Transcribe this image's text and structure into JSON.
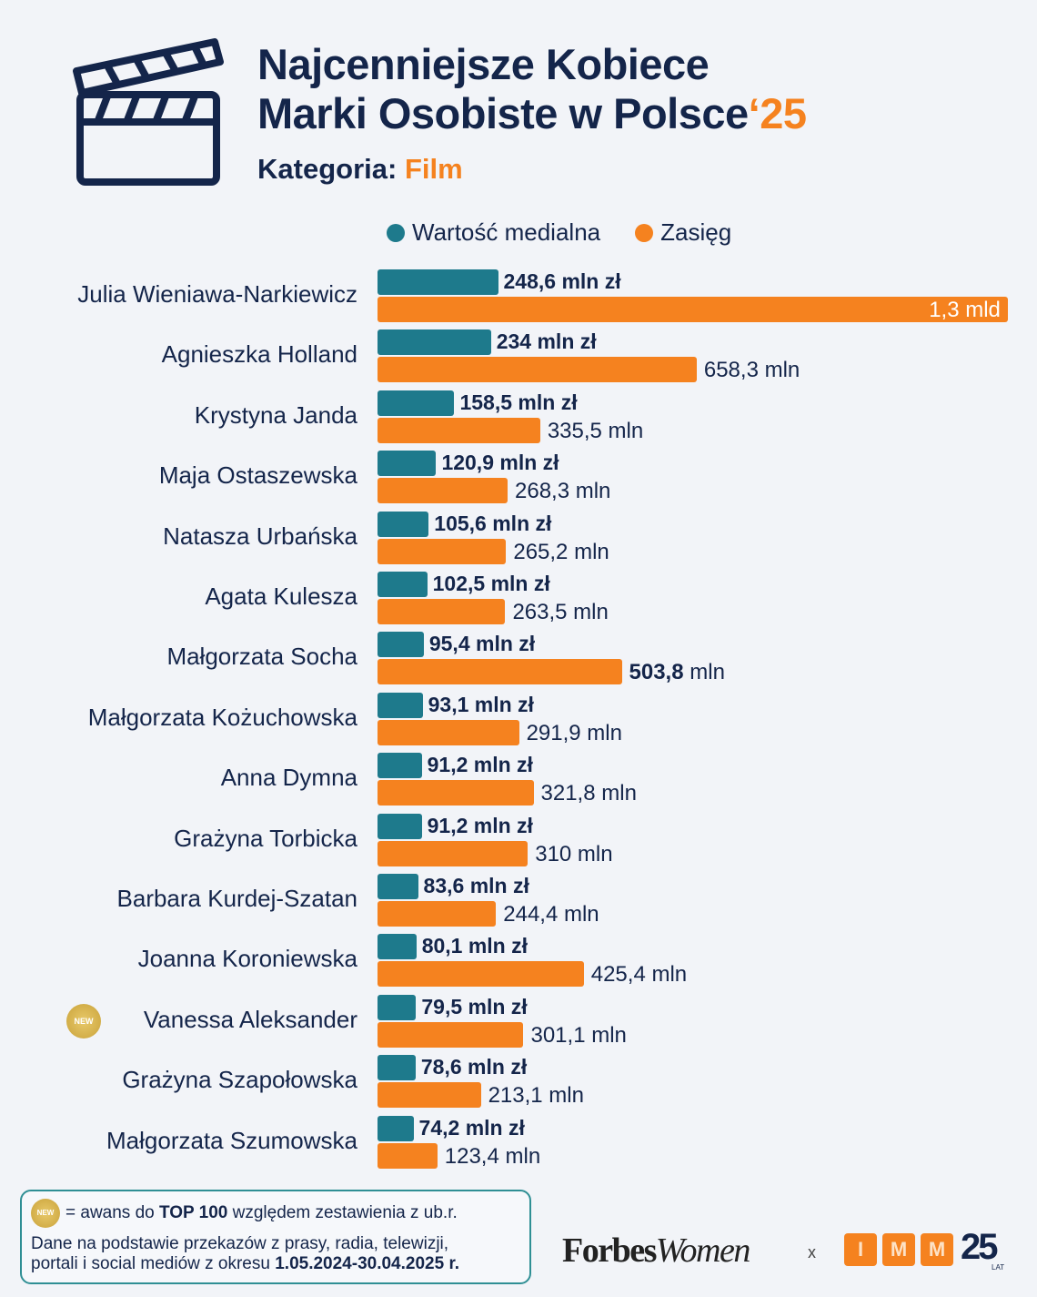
{
  "header": {
    "title_line1": "Najcenniejsze Kobiece",
    "title_line2": "Marki Osobiste w Polsce",
    "title_year": "‘25",
    "category_label": "Kategoria:",
    "category_value": "Film",
    "icon": "clapperboard-icon"
  },
  "colors": {
    "teal": "#1e7a8c",
    "orange": "#f5821f",
    "navy": "#14254a",
    "background": "#f2f4f8"
  },
  "chart_data": {
    "type": "bar",
    "orientation": "horizontal",
    "unit_note": "mln",
    "legend_position": "top",
    "series": [
      {
        "name": "Wartość medialna",
        "color": "#1e7a8c",
        "values": [
          248.6,
          234,
          158.5,
          120.9,
          105.6,
          102.5,
          95.4,
          93.1,
          91.2,
          91.2,
          83.6,
          80.1,
          79.5,
          78.6,
          74.2
        ],
        "labels": [
          "248,6 mln zł",
          "234 mln zł",
          "158,5 mln zł",
          "120,9 mln zł",
          "105,6 mln zł",
          "102,5 mln zł",
          "95,4 mln zł",
          "93,1 mln zł",
          "91,2 mln zł",
          "91,2 mln zł",
          "83,6 mln zł",
          "80,1 mln zł",
          "79,5 mln zł",
          "78,6 mln zł",
          "74,2 mln zł"
        ]
      },
      {
        "name": "Zasięg",
        "color": "#f5821f",
        "values": [
          1300,
          658.3,
          335.5,
          268.3,
          265.2,
          263.5,
          503.8,
          291.9,
          321.8,
          310,
          244.4,
          425.4,
          301.1,
          213.1,
          123.4
        ],
        "labels": [
          "1,3 mld",
          "658,3 mln",
          "335,5 mln",
          "268,3 mln",
          "265,2 mln",
          "263,5 mln",
          "503,8 mln",
          "291,9 mln",
          "321,8 mln",
          "310 mln",
          "244,4 mln",
          "425,4 mln",
          "301,1 mln",
          "213,1 mln",
          "123,4 mln"
        ]
      }
    ],
    "categories": [
      "Julia Wieniawa-Narkiewicz",
      "Agnieszka Holland",
      "Krystyna Janda",
      "Maja Ostaszewska",
      "Natasza Urbańska",
      "Agata Kulesza",
      "Małgorzata Socha",
      "Małgorzata Kożuchowska",
      "Anna Dymna",
      "Grażyna Torbicka",
      "Barbara Kurdej-Szatan",
      "Joanna Koroniewska",
      "Vanessa Aleksander",
      "Grażyna Szapołowska",
      "Małgorzata Szumowska"
    ],
    "new_flags": [
      false,
      false,
      false,
      false,
      false,
      false,
      false,
      false,
      false,
      false,
      false,
      false,
      true,
      false,
      false
    ],
    "grid": false
  },
  "footer": {
    "badge_text": "NEW",
    "legend_pre": "= awans do ",
    "legend_bold": "TOP 100",
    "legend_post": " względem zestawienia z ub.r.",
    "note_line1": "Dane na podstawie przekazów z prasy, radia, telewizji,",
    "note_line2_pre": "portali i social mediów z okresu ",
    "note_line2_bold": "1.05.2024-30.04.2025 r.",
    "logo_forbes_a": "Forbes",
    "logo_forbes_b": "Women",
    "separator": "x",
    "logo_imm": [
      "I",
      "M",
      "M"
    ],
    "logo_imm_years": "25",
    "logo_imm_lat": "LAT"
  }
}
